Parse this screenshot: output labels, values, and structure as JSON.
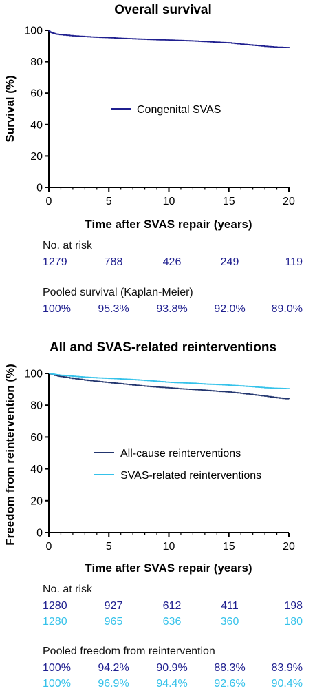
{
  "colors": {
    "navy": "#1f1f8f",
    "dark_blue": "#22356e",
    "light_blue": "#35c2ea",
    "axis": "#000000"
  },
  "chart_data": [
    {
      "type": "line",
      "title": "Overall survival",
      "xlabel": "Time after SVAS repair (years)",
      "ylabel": "Survival (%)",
      "xlim": [
        0,
        20
      ],
      "ylim": [
        0,
        100
      ],
      "xticks": [
        "0",
        "5",
        "10",
        "15",
        "20"
      ],
      "yticks": [
        "0",
        "20",
        "40",
        "60",
        "80",
        "100"
      ],
      "grid": false,
      "legend_position": "center",
      "series": [
        {
          "name": "Congenital SVAS",
          "color": "#1f1f8f",
          "points": [
            [
              0,
              100
            ],
            [
              0.1,
              99
            ],
            [
              0.3,
              98.3
            ],
            [
              0.6,
              97.6
            ],
            [
              1,
              97.2
            ],
            [
              2,
              96.5
            ],
            [
              3,
              96
            ],
            [
              4,
              95.6
            ],
            [
              5,
              95.3
            ],
            [
              6,
              94.9
            ],
            [
              7,
              94.6
            ],
            [
              8,
              94.3
            ],
            [
              9,
              94
            ],
            [
              10,
              93.8
            ],
            [
              11,
              93.5
            ],
            [
              12,
              93.2
            ],
            [
              13,
              92.8
            ],
            [
              14,
              92.4
            ],
            [
              15,
              92
            ],
            [
              16,
              91.2
            ],
            [
              17,
              90.5
            ],
            [
              18,
              89.8
            ],
            [
              19,
              89.2
            ],
            [
              20,
              89
            ]
          ]
        }
      ],
      "table": {
        "at_risk_label": "No. at risk",
        "at_risk": [
          "1279",
          "788",
          "426",
          "249",
          "119"
        ],
        "pooled_label": "Pooled survival (Kaplan-Meier)",
        "pooled": [
          "100%",
          "95.3%",
          "93.8%",
          "92.0%",
          "89.0%"
        ]
      }
    },
    {
      "type": "line",
      "title": "All and SVAS-related reinterventions",
      "xlabel": "Time after SVAS repair (years)",
      "ylabel": "Freedom from reintervention (%)",
      "xlim": [
        0,
        20
      ],
      "ylim": [
        0,
        100
      ],
      "xticks": [
        "0",
        "5",
        "10",
        "15",
        "20"
      ],
      "yticks": [
        "0",
        "20",
        "40",
        "60",
        "80",
        "100"
      ],
      "grid": false,
      "legend_position": "center-right",
      "series": [
        {
          "name": "All-cause reinterventions",
          "color": "#22356e",
          "points": [
            [
              0,
              100
            ],
            [
              0.5,
              98.8
            ],
            [
              1,
              98
            ],
            [
              2,
              96.8
            ],
            [
              3,
              95.8
            ],
            [
              4,
              95
            ],
            [
              5,
              94.2
            ],
            [
              6,
              93.5
            ],
            [
              7,
              92.7
            ],
            [
              8,
              92
            ],
            [
              9,
              91.4
            ],
            [
              10,
              90.9
            ],
            [
              11,
              90.3
            ],
            [
              12,
              89.9
            ],
            [
              13,
              89.4
            ],
            [
              14,
              88.8
            ],
            [
              15,
              88.3
            ],
            [
              16,
              87.5
            ],
            [
              17,
              86.6
            ],
            [
              18,
              85.7
            ],
            [
              19,
              84.7
            ],
            [
              20,
              83.9
            ]
          ]
        },
        {
          "name": "SVAS-related reinterventions",
          "color": "#35c2ea",
          "points": [
            [
              0,
              100
            ],
            [
              0.5,
              99.3
            ],
            [
              1,
              98.8
            ],
            [
              2,
              98.2
            ],
            [
              3,
              97.6
            ],
            [
              4,
              97.2
            ],
            [
              5,
              96.9
            ],
            [
              6,
              96.5
            ],
            [
              7,
              96.1
            ],
            [
              8,
              95.6
            ],
            [
              9,
              95
            ],
            [
              10,
              94.4
            ],
            [
              11,
              94.1
            ],
            [
              12,
              93.8
            ],
            [
              13,
              93.3
            ],
            [
              14,
              93
            ],
            [
              15,
              92.6
            ],
            [
              16,
              92.1
            ],
            [
              17,
              91.6
            ],
            [
              18,
              91
            ],
            [
              19,
              90.6
            ],
            [
              20,
              90.4
            ]
          ]
        }
      ],
      "table": {
        "at_risk_label": "No. at risk",
        "at_risk_all": [
          "1280",
          "927",
          "612",
          "411",
          "198"
        ],
        "at_risk_svas": [
          "1280",
          "965",
          "636",
          "360",
          "180"
        ],
        "pooled_label": "Pooled freedom from reintervention",
        "pooled_all": [
          "100%",
          "94.2%",
          "90.9%",
          "88.3%",
          "83.9%"
        ],
        "pooled_svas": [
          "100%",
          "96.9%",
          "94.4%",
          "92.6%",
          "90.4%"
        ]
      }
    }
  ]
}
